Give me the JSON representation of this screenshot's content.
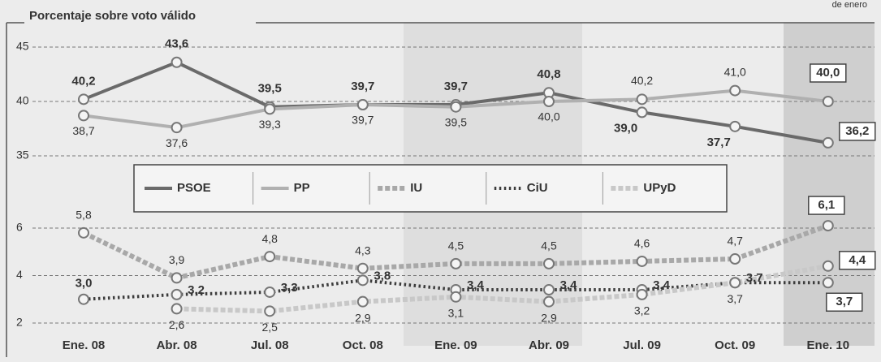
{
  "note": "de enero",
  "chart_data": [
    {
      "type": "line",
      "title": "Porcentaje sobre voto válido",
      "categories": [
        "Ene. 08",
        "Abr. 08",
        "Jul. 08",
        "Oct. 08",
        "Ene. 09",
        "Abr. 09",
        "Jul. 09",
        "Oct. 09",
        "Ene. 10"
      ],
      "ylim": [
        33,
        46
      ],
      "yticks": [
        35,
        40,
        45
      ],
      "grid": true,
      "series": [
        {
          "name": "PSOE",
          "color": "#6a6a6a",
          "linestyle": "solid",
          "values": [
            40.2,
            43.6,
            39.5,
            39.7,
            39.7,
            40.8,
            39.0,
            37.7,
            36.2
          ],
          "value_labels": [
            "40,2",
            "43,6",
            "39,5",
            "39,7",
            "39,7",
            "40,8",
            "39,0",
            "37,7",
            "36,2"
          ]
        },
        {
          "name": "PP",
          "color": "#b0b0b0",
          "linestyle": "solid",
          "values": [
            38.7,
            37.6,
            39.3,
            39.7,
            39.5,
            40.0,
            40.2,
            41.0,
            40.0
          ],
          "value_labels": [
            "38,7",
            "37,6",
            "39,3",
            "39,7",
            "39,5",
            "40,0",
            "40,2",
            "41,0",
            "40,0"
          ]
        }
      ]
    },
    {
      "type": "line",
      "ylim": [
        1.5,
        7
      ],
      "yticks": [
        2,
        4,
        6
      ],
      "grid": true,
      "series": [
        {
          "name": "IU",
          "color": "#a8a8a8",
          "linestyle": "dashed",
          "values": [
            5.8,
            3.9,
            4.8,
            4.3,
            4.5,
            4.5,
            4.6,
            4.7,
            6.1
          ],
          "value_labels": [
            "5,8",
            "3,9",
            "4,8",
            "4,3",
            "4,5",
            "4,5",
            "4,6",
            "4,7",
            "6,1"
          ]
        },
        {
          "name": "CiU",
          "color": "#3c3c3c",
          "linestyle": "dotted",
          "values": [
            3.0,
            3.2,
            3.3,
            3.8,
            3.4,
            3.4,
            3.4,
            3.7,
            3.7
          ],
          "value_labels": [
            "3,0",
            "3,2",
            "3,3",
            "3,8",
            "3,4",
            "3,4",
            "3,4",
            "3,7",
            "3,7"
          ]
        },
        {
          "name": "UPyD",
          "color": "#c8c8c8",
          "linestyle": "dashed",
          "values": [
            null,
            2.6,
            2.5,
            2.9,
            3.1,
            2.9,
            3.2,
            3.7,
            4.4
          ],
          "value_labels": [
            null,
            "2,6",
            "2,5",
            "2,9",
            "3,1",
            "2,9",
            "3,2",
            "3,7",
            "4,4"
          ]
        }
      ]
    }
  ]
}
